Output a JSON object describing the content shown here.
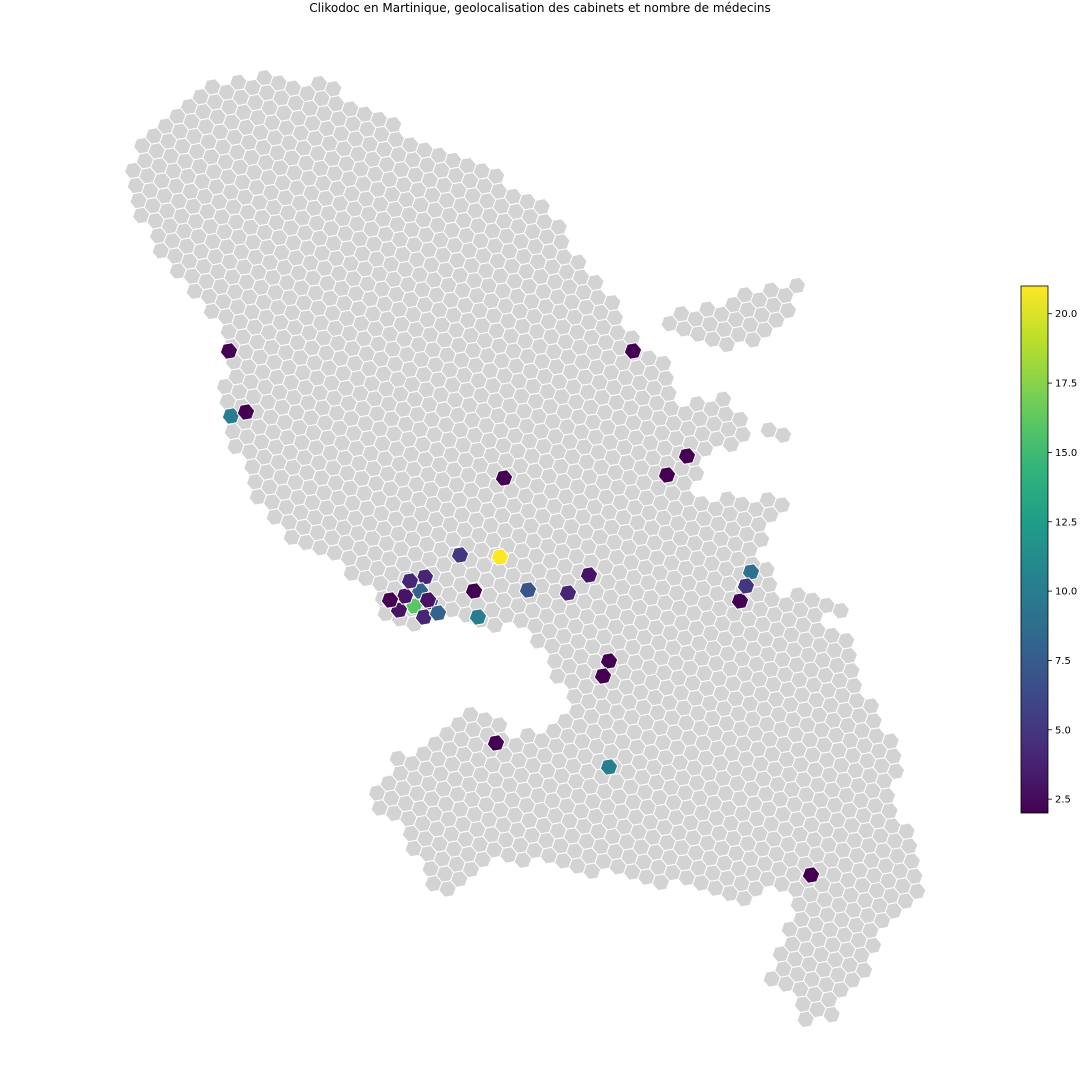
{
  "title": "Clikodoc en Martinique, geolocalisation des cabinets et nombre de médecins",
  "colorbar": {
    "colormap": "viridis",
    "min": 2.0,
    "max": 21.0,
    "ticks": [
      "2.5",
      "5.0",
      "7.5",
      "10.0",
      "12.5",
      "15.0",
      "17.5",
      "20.0"
    ]
  },
  "colors": {
    "empty_hex": "#d3d3d3",
    "hex_edge": "#ffffff"
  },
  "map_data": {
    "type": "hexbin-choropleth",
    "region": "Martinique",
    "cabinet_hexes": [
      {
        "lon_rank": 1,
        "value": 2
      },
      {
        "lon_rank": 2,
        "value": 10
      },
      {
        "lon_rank": 3,
        "value": 2
      },
      {
        "value": 2
      },
      {
        "value": 5
      },
      {
        "value": 3
      },
      {
        "value": 4
      },
      {
        "value": 9
      },
      {
        "value": 2
      },
      {
        "value": 16
      },
      {
        "value": 3
      },
      {
        "value": 4
      },
      {
        "value": 8
      },
      {
        "value": 3
      },
      {
        "value": 6
      },
      {
        "value": 2
      },
      {
        "value": 21
      },
      {
        "value": 10
      },
      {
        "value": 2
      },
      {
        "value": 7
      },
      {
        "value": 4
      },
      {
        "value": 4
      },
      {
        "value": 2
      },
      {
        "value": 2
      },
      {
        "value": 2
      },
      {
        "value": 10
      },
      {
        "value": 2
      },
      {
        "value": 2
      },
      {
        "value": 2
      },
      {
        "value": 8
      },
      {
        "value": 5
      },
      {
        "value": 3
      },
      {
        "value": 2
      }
    ]
  }
}
